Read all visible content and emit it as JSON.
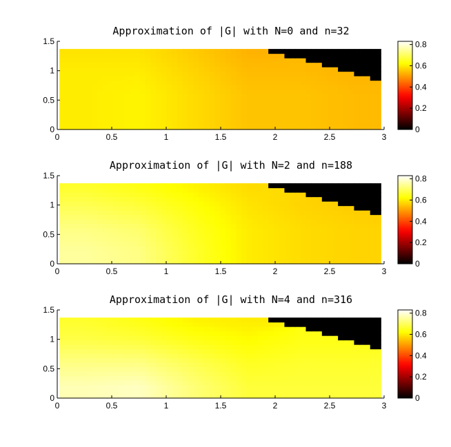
{
  "chart_data": [
    {
      "type": "heatmap",
      "title": "Approximation of |G| with N=0 and n=32",
      "xlim": [
        0,
        3
      ],
      "ylim": [
        0,
        1.5
      ],
      "xticks": [
        0,
        0.5,
        1,
        1.5,
        2,
        2.5,
        3
      ],
      "xtick_labels": [
        "0",
        "0.5",
        "1",
        "1.5",
        "2",
        "2.5",
        "3"
      ],
      "yticks": [
        0,
        0.5,
        1,
        1.5
      ],
      "ytick_labels": [
        "0",
        "0.5",
        "1",
        "1.5"
      ],
      "data_extent": {
        "x": [
          0.02,
          2.97
        ],
        "y": [
          0.0,
          1.37
        ]
      },
      "masked_region": {
        "description": "black (zero) wedge",
        "corners": [
          [
            1.87,
            1.37
          ],
          [
            2.97,
            1.37
          ],
          [
            2.97,
            0.83
          ]
        ]
      },
      "value_grid": {
        "x": [
          0.25,
          0.75,
          1.25,
          1.75,
          2.25,
          2.75
        ],
        "y": [
          0.2,
          0.6,
          1.0,
          1.3
        ],
        "values": [
          [
            0.6,
            0.61,
            0.58,
            0.55,
            0.55,
            0.54
          ],
          [
            0.6,
            0.61,
            0.58,
            0.55,
            0.55,
            0.54
          ],
          [
            0.6,
            0.6,
            0.57,
            0.54,
            0.54,
            0.53
          ],
          [
            0.59,
            0.59,
            0.56,
            0.53,
            0.0,
            0.0
          ]
        ]
      },
      "colorbar": {
        "min": 0,
        "max": 0.83,
        "ticks": [
          0,
          0.2,
          0.4,
          0.6,
          0.8
        ],
        "tick_labels": [
          "0",
          "0.2",
          "0.4",
          "0.6",
          "0.8"
        ],
        "colormap": "hot"
      }
    },
    {
      "type": "heatmap",
      "title": "Approximation of |G| with N=2 and n=188",
      "xlim": [
        0,
        3
      ],
      "ylim": [
        0,
        1.5
      ],
      "xticks": [
        0,
        0.5,
        1,
        1.5,
        2,
        2.5,
        3
      ],
      "xtick_labels": [
        "0",
        "0.5",
        "1",
        "1.5",
        "2",
        "2.5",
        "3"
      ],
      "yticks": [
        0,
        0.5,
        1,
        1.5
      ],
      "ytick_labels": [
        "0",
        "0.5",
        "1",
        "1.5"
      ],
      "data_extent": {
        "x": [
          0.02,
          2.97
        ],
        "y": [
          0.0,
          1.37
        ]
      },
      "masked_region": {
        "description": "black (zero) wedge",
        "corners": [
          [
            1.87,
            1.37
          ],
          [
            2.97,
            1.37
          ],
          [
            2.97,
            0.83
          ]
        ]
      },
      "value_grid": {
        "x": [
          0.25,
          0.75,
          1.25,
          1.75,
          2.25,
          2.75
        ],
        "y": [
          0.2,
          0.6,
          1.0,
          1.3
        ],
        "values": [
          [
            0.75,
            0.73,
            0.66,
            0.6,
            0.58,
            0.57
          ],
          [
            0.73,
            0.71,
            0.65,
            0.6,
            0.58,
            0.57
          ],
          [
            0.69,
            0.67,
            0.63,
            0.59,
            0.57,
            0.56
          ],
          [
            0.66,
            0.64,
            0.61,
            0.58,
            0.0,
            0.0
          ]
        ]
      },
      "colorbar": {
        "min": 0,
        "max": 0.83,
        "ticks": [
          0,
          0.2,
          0.4,
          0.6,
          0.8
        ],
        "tick_labels": [
          "0",
          "0.2",
          "0.4",
          "0.6",
          "0.8"
        ],
        "colormap": "hot"
      }
    },
    {
      "type": "heatmap",
      "title": "Approximation of |G| with N=4 and n=316",
      "xlim": [
        0,
        3
      ],
      "ylim": [
        0,
        1.5
      ],
      "xticks": [
        0,
        0.5,
        1,
        1.5,
        2,
        2.5,
        3
      ],
      "xtick_labels": [
        "0",
        "0.5",
        "1",
        "1.5",
        "2",
        "2.5",
        "3"
      ],
      "yticks": [
        0,
        0.5,
        1,
        1.5
      ],
      "ytick_labels": [
        "0",
        "0.5",
        "1",
        "1.5"
      ],
      "data_extent": {
        "x": [
          0.02,
          2.97
        ],
        "y": [
          0.0,
          1.37
        ]
      },
      "masked_region": {
        "description": "black (zero) wedge",
        "corners": [
          [
            1.87,
            1.37
          ],
          [
            2.97,
            1.37
          ],
          [
            2.97,
            0.83
          ]
        ]
      },
      "value_grid": {
        "x": [
          0.25,
          0.75,
          1.25,
          1.75,
          2.25,
          2.75
        ],
        "y": [
          0.2,
          0.6,
          1.0,
          1.3
        ],
        "values": [
          [
            0.77,
            0.78,
            0.72,
            0.67,
            0.67,
            0.67
          ],
          [
            0.73,
            0.73,
            0.69,
            0.65,
            0.66,
            0.66
          ],
          [
            0.68,
            0.67,
            0.64,
            0.62,
            0.64,
            0.64
          ],
          [
            0.66,
            0.64,
            0.61,
            0.6,
            0.0,
            0.0
          ]
        ]
      },
      "colorbar": {
        "min": 0,
        "max": 0.83,
        "ticks": [
          0,
          0.2,
          0.4,
          0.6,
          0.8
        ],
        "tick_labels": [
          "0",
          "0.2",
          "0.4",
          "0.6",
          "0.8"
        ],
        "colormap": "hot"
      }
    }
  ]
}
